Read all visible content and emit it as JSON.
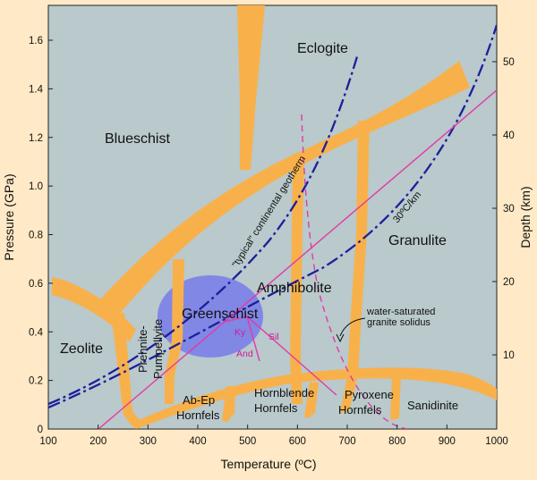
{
  "colors": {
    "plot_background": "#b9c9cc",
    "page_background": "#ffe9c6",
    "facies_boundary": "#f8b14a",
    "greenschist_fill": "#7b7fe8",
    "geotherm": "#1d1f9a",
    "aluminosilicate_and_solidus": "#e23aa5"
  },
  "axes": {
    "x_label": "Temperature (ºC)",
    "y_left_label": "Pressure (GPa)",
    "y_right_label": "Depth (km)",
    "x_ticks": [
      "100",
      "200",
      "300",
      "400",
      "500",
      "600",
      "700",
      "800",
      "900",
      "1000"
    ],
    "y_left_ticks": [
      "0",
      "0.2",
      "0.4",
      "0.6",
      "0.8",
      "1.0",
      "1.2",
      "1.4",
      "1.6"
    ],
    "y_right_ticks": [
      "10",
      "20",
      "30",
      "40",
      "50"
    ]
  },
  "facies": {
    "eclogite": "Eclogite",
    "blueschist": "Blueschist",
    "granulite": "Granulite",
    "amphibolite": "Amphibolite",
    "greenschist": "Greenschist",
    "zeolite": "Zeolite",
    "prehnite_pumpellyite": "Prehnite-\nPumpellyite",
    "prehnite_line1": "Prehnite-",
    "prehnite_line2": "Pumpellyite",
    "ab_ep_line1": "Ab-Ep",
    "ab_ep_line2": "Hornfels",
    "hornblende_line1": "Hornblende",
    "hornblende_line2": "Hornfels",
    "pyroxene_line1": "Pyroxene",
    "pyroxene_line2": "Hornfels",
    "sanidinite": "Sanidinite"
  },
  "annotations": {
    "geotherm": "\"typical\" continental geotherm",
    "gradient": "30ºC/km",
    "solidus_line1": "water-saturated",
    "solidus_line2": "granite solidus",
    "kyanite": "Ky",
    "sillimanite": "Sil",
    "andalusite": "And"
  }
}
